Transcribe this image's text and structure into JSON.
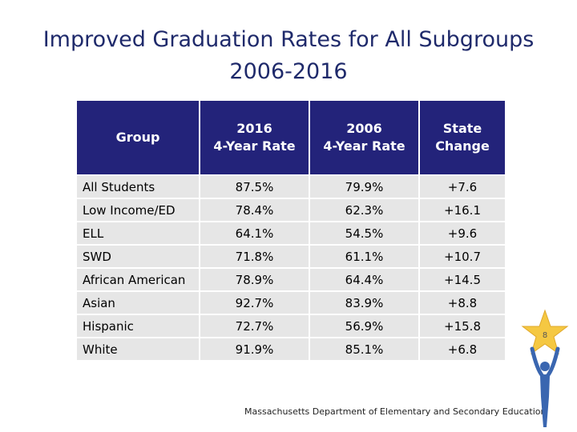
{
  "title": {
    "line1": "Improved Graduation Rates for All Subgroups",
    "line2": "2006-2016"
  },
  "table": {
    "headers": [
      {
        "line1": "Group",
        "line2": ""
      },
      {
        "line1": "2016",
        "line2": "4-Year Rate"
      },
      {
        "line1": "2006",
        "line2": "4-Year Rate"
      },
      {
        "line1": "State",
        "line2": "Change"
      }
    ],
    "rows": [
      [
        "All Students",
        "87.5%",
        "79.9%",
        "+7.6"
      ],
      [
        "Low Income/ED",
        "78.4%",
        "62.3%",
        "+16.1"
      ],
      [
        "ELL",
        "64.1%",
        "54.5%",
        "+9.6"
      ],
      [
        "SWD",
        "71.8%",
        "61.1%",
        "+10.7"
      ],
      [
        "African American",
        "78.9%",
        "64.4%",
        "+14.5"
      ],
      [
        "Asian",
        "92.7%",
        "83.9%",
        "+8.8"
      ],
      [
        "Hispanic",
        "72.7%",
        "56.9%",
        "+15.8"
      ],
      [
        "White",
        "91.9%",
        "85.1%",
        "+6.8"
      ]
    ]
  },
  "footer": "Massachusetts Department of Elementary and Secondary Education",
  "page_number": "8",
  "colors": {
    "title": "#1f2a6b",
    "header_bg": "#23237a",
    "row_bg": "#e6e6e6",
    "star": "#f5c842",
    "figure": "#3a66b0"
  },
  "icons": {
    "logo": "star-figure-icon"
  }
}
